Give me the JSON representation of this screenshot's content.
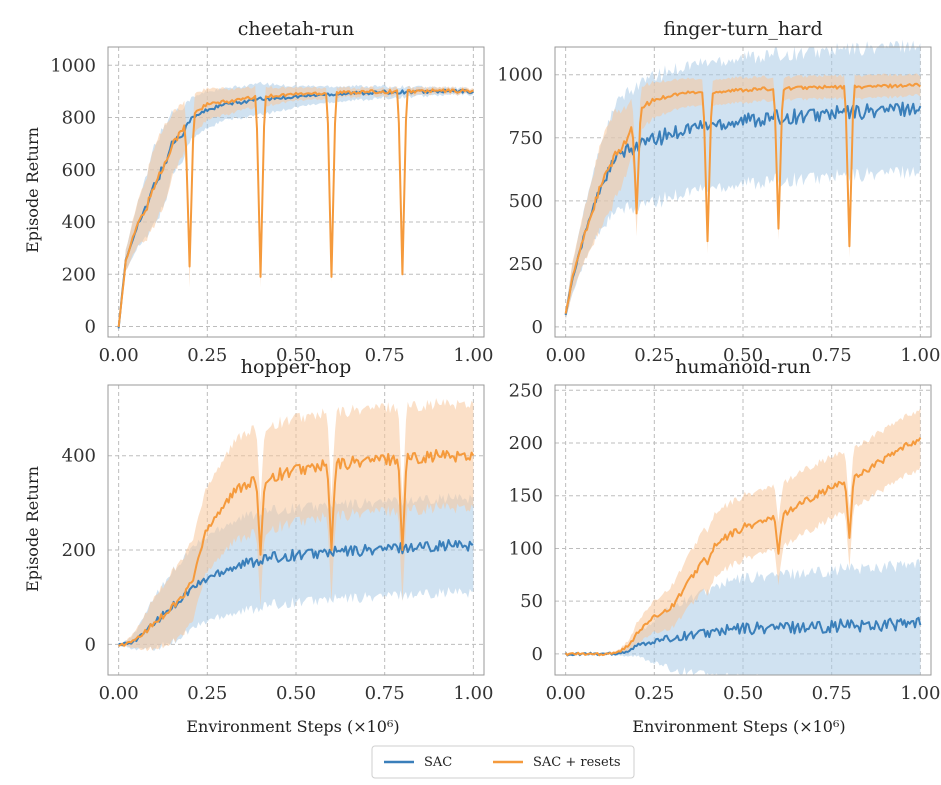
{
  "colors": {
    "sac": "#3a7fba",
    "sac_resets": "#f59a3c",
    "sac_band": "#a9cbe6",
    "sac_resets_band": "#f8c69a",
    "grid": "#bdbdbd",
    "frame": "#999999"
  },
  "legend": {
    "placement": "bottom-center",
    "entries": [
      "SAC",
      "SAC + resets"
    ]
  },
  "x_axis": {
    "label": "Environment Steps (×10⁶)",
    "ticks": [
      "0.00",
      "0.25",
      "0.50",
      "0.75",
      "1.00"
    ],
    "tick_values": [
      0.0,
      0.25,
      0.5,
      0.75,
      1.0
    ]
  },
  "y_axis_label": "Episode Return",
  "chart_data": [
    {
      "type": "line",
      "title": "cheetah-run",
      "grid": true,
      "xlim": [
        -0.03,
        1.03
      ],
      "ylim": [
        -40,
        1070
      ],
      "yticks": [
        0,
        200,
        400,
        600,
        800,
        1000
      ],
      "ytick_labels": [
        "0",
        "200",
        "400",
        "600",
        "800",
        "1000"
      ],
      "resets_at": [
        0.2,
        0.4,
        0.6,
        0.8
      ],
      "reset_dips": [
        230,
        190,
        190,
        200
      ],
      "series": [
        {
          "name": "SAC",
          "x": [
            0.0,
            0.02,
            0.05,
            0.08,
            0.1,
            0.13,
            0.15,
            0.18,
            0.2,
            0.25,
            0.3,
            0.35,
            0.4,
            0.45,
            0.5,
            0.6,
            0.7,
            0.8,
            0.9,
            1.0
          ],
          "y": [
            0,
            250,
            380,
            460,
            540,
            620,
            700,
            740,
            790,
            830,
            850,
            860,
            870,
            875,
            880,
            890,
            895,
            898,
            900,
            900
          ],
          "band_width": [
            0,
            40,
            80,
            120,
            150,
            150,
            120,
            100,
            80,
            70,
            60,
            60,
            60,
            50,
            40,
            30,
            25,
            20,
            15,
            10
          ]
        },
        {
          "name": "SAC + resets",
          "x": [
            0.0,
            0.02,
            0.05,
            0.08,
            0.1,
            0.13,
            0.15,
            0.18,
            0.2,
            0.25,
            0.3,
            0.35,
            0.4,
            0.45,
            0.5,
            0.6,
            0.7,
            0.8,
            0.9,
            1.0
          ],
          "y": [
            0,
            250,
            380,
            460,
            540,
            620,
            700,
            750,
            810,
            850,
            860,
            870,
            880,
            885,
            890,
            895,
            898,
            900,
            902,
            902
          ],
          "band_width": [
            0,
            40,
            80,
            120,
            150,
            150,
            120,
            100,
            80,
            60,
            50,
            40,
            40,
            30,
            25,
            20,
            15,
            15,
            12,
            10
          ]
        }
      ]
    },
    {
      "type": "line",
      "title": "finger-turn_hard",
      "grid": true,
      "xlim": [
        -0.03,
        1.03
      ],
      "ylim": [
        -40,
        1110
      ],
      "yticks": [
        0,
        250,
        500,
        750,
        1000
      ],
      "ytick_labels": [
        "0",
        "250",
        "500",
        "750",
        "1000"
      ],
      "resets_at": [
        0.2,
        0.4,
        0.6,
        0.8
      ],
      "reset_dips": [
        450,
        340,
        390,
        320
      ],
      "series": [
        {
          "name": "SAC",
          "x": [
            0.0,
            0.02,
            0.05,
            0.08,
            0.1,
            0.13,
            0.15,
            0.18,
            0.2,
            0.25,
            0.3,
            0.35,
            0.4,
            0.45,
            0.5,
            0.6,
            0.7,
            0.8,
            0.9,
            1.0
          ],
          "y": [
            50,
            200,
            350,
            480,
            560,
            640,
            680,
            700,
            720,
            740,
            770,
            790,
            800,
            810,
            820,
            830,
            840,
            850,
            860,
            870
          ],
          "band_width": [
            20,
            60,
            100,
            140,
            170,
            200,
            220,
            230,
            240,
            250,
            250,
            250,
            250,
            250,
            250,
            250,
            250,
            250,
            250,
            250
          ]
        },
        {
          "name": "SAC + resets",
          "x": [
            0.0,
            0.02,
            0.05,
            0.08,
            0.1,
            0.13,
            0.15,
            0.18,
            0.2,
            0.25,
            0.3,
            0.35,
            0.4,
            0.45,
            0.5,
            0.6,
            0.7,
            0.8,
            0.9,
            1.0
          ],
          "y": [
            50,
            200,
            350,
            480,
            560,
            650,
            700,
            760,
            860,
            900,
            920,
            930,
            930,
            935,
            940,
            945,
            950,
            950,
            955,
            960
          ],
          "band_width": [
            20,
            60,
            100,
            140,
            170,
            180,
            160,
            120,
            90,
            70,
            60,
            55,
            50,
            50,
            50,
            45,
            45,
            45,
            45,
            40
          ]
        }
      ]
    },
    {
      "type": "line",
      "title": "hopper-hop",
      "grid": true,
      "xlim": [
        -0.03,
        1.03
      ],
      "ylim": [
        -65,
        550
      ],
      "yticks": [
        0,
        200,
        400
      ],
      "ytick_labels": [
        "0",
        "200",
        "400"
      ],
      "resets_at": [
        0.2,
        0.4,
        0.6,
        0.8
      ],
      "reset_dips": [
        130,
        190,
        200,
        200
      ],
      "series": [
        {
          "name": "SAC",
          "x": [
            0.0,
            0.02,
            0.05,
            0.08,
            0.1,
            0.13,
            0.15,
            0.18,
            0.2,
            0.25,
            0.3,
            0.35,
            0.4,
            0.45,
            0.5,
            0.6,
            0.7,
            0.8,
            0.9,
            1.0
          ],
          "y": [
            0,
            0,
            10,
            30,
            45,
            65,
            80,
            100,
            115,
            140,
            160,
            170,
            180,
            185,
            190,
            195,
            200,
            205,
            210,
            210
          ],
          "band_width": [
            0,
            5,
            20,
            40,
            55,
            65,
            75,
            80,
            85,
            90,
            95,
            100,
            100,
            100,
            100,
            100,
            100,
            100,
            100,
            100
          ]
        },
        {
          "name": "SAC + resets",
          "x": [
            0.0,
            0.02,
            0.05,
            0.08,
            0.1,
            0.13,
            0.15,
            0.18,
            0.2,
            0.25,
            0.3,
            0.35,
            0.4,
            0.45,
            0.5,
            0.6,
            0.7,
            0.8,
            0.9,
            1.0
          ],
          "y": [
            0,
            0,
            10,
            30,
            45,
            65,
            80,
            100,
            115,
            250,
            300,
            340,
            350,
            360,
            370,
            380,
            390,
            395,
            400,
            400
          ],
          "band_width": [
            0,
            5,
            20,
            40,
            55,
            65,
            75,
            80,
            85,
            90,
            100,
            110,
            110,
            110,
            110,
            110,
            110,
            110,
            110,
            110
          ]
        }
      ]
    },
    {
      "type": "line",
      "title": "humanoid-run",
      "grid": true,
      "xlim": [
        -0.03,
        1.03
      ],
      "ylim": [
        -20,
        255
      ],
      "yticks": [
        0,
        50,
        100,
        150,
        200,
        250
      ],
      "ytick_labels": [
        "0",
        "50",
        "100",
        "150",
        "200",
        "250"
      ],
      "resets_at": [
        0.4,
        0.6,
        0.8
      ],
      "reset_dips": [
        85,
        95,
        110
      ],
      "series": [
        {
          "name": "SAC",
          "x": [
            0.0,
            0.05,
            0.1,
            0.15,
            0.18,
            0.2,
            0.25,
            0.3,
            0.35,
            0.4,
            0.45,
            0.5,
            0.6,
            0.7,
            0.8,
            0.9,
            1.0
          ],
          "y": [
            0,
            0,
            0,
            1,
            3,
            8,
            12,
            15,
            18,
            20,
            22,
            24,
            25,
            26,
            27,
            28,
            28
          ],
          "band_width": [
            0,
            0,
            0,
            2,
            5,
            10,
            20,
            30,
            35,
            40,
            45,
            48,
            50,
            52,
            54,
            55,
            56
          ]
        },
        {
          "name": "SAC + resets",
          "x": [
            0.0,
            0.05,
            0.1,
            0.15,
            0.18,
            0.2,
            0.25,
            0.3,
            0.35,
            0.4,
            0.45,
            0.5,
            0.6,
            0.7,
            0.8,
            0.9,
            1.0
          ],
          "y": [
            0,
            0,
            0,
            2,
            8,
            20,
            35,
            45,
            70,
            95,
            110,
            120,
            130,
            150,
            165,
            185,
            205
          ],
          "band_width": [
            0,
            0,
            0,
            2,
            5,
            10,
            15,
            20,
            25,
            30,
            30,
            30,
            30,
            30,
            28,
            28,
            28
          ]
        }
      ]
    }
  ]
}
